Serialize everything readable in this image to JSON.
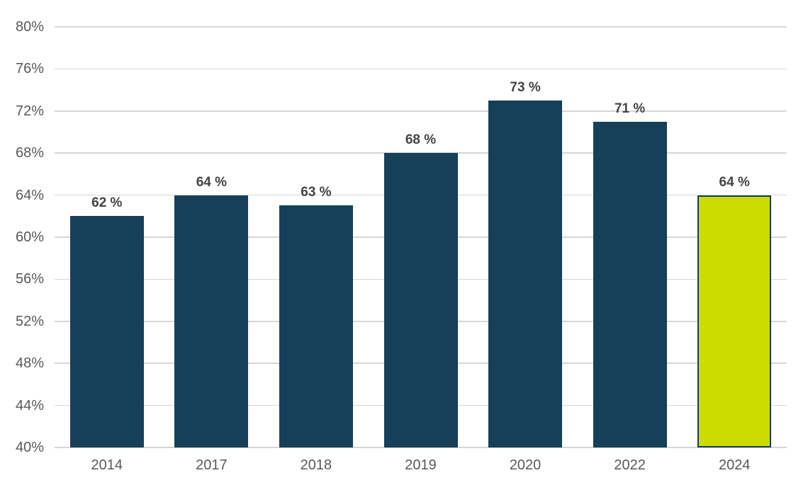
{
  "chart_data": {
    "type": "bar",
    "categories": [
      "2014",
      "2017",
      "2018",
      "2019",
      "2020",
      "2022",
      "2024"
    ],
    "values": [
      62,
      64,
      63,
      68,
      73,
      71,
      64
    ],
    "data_labels": [
      "62 %",
      "64 %",
      "63 %",
      "68 %",
      "73 %",
      "71 %",
      "64 %"
    ],
    "ylim": [
      40,
      80
    ],
    "yticks": [
      80,
      76,
      72,
      68,
      64,
      60,
      56,
      52,
      48,
      44,
      40
    ],
    "ytick_labels": [
      "80%",
      "76%",
      "72%",
      "68%",
      "64%",
      "60%",
      "56%",
      "52%",
      "48%",
      "44%",
      "40%"
    ],
    "grid": true,
    "legend": "none",
    "colors": {
      "bar": "#154058",
      "highlight_fill": "#CDDC00",
      "highlight_border": "#154058",
      "gridline": "#D6D6D6",
      "axis_label": "#595959",
      "data_label": "#444444",
      "background": "#FFFFFF"
    },
    "highlight_index": 6
  }
}
